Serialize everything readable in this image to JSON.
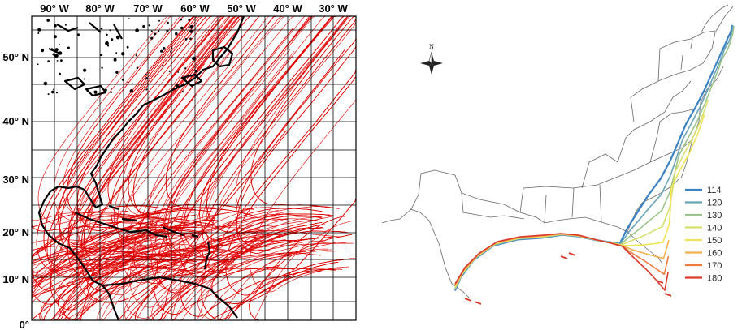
{
  "left_map": {
    "lon_labels": [
      "90° W",
      "80° W",
      "70° W",
      "60° W",
      "50° W",
      "40° W",
      "30° W"
    ],
    "lat_labels": [
      "50° N",
      "40° N",
      "30° N",
      "20° N",
      "10° N",
      "0°"
    ],
    "track_color": "#e00000",
    "coast_color": "#000000"
  },
  "right_map": {
    "compass_label": "N",
    "legend": [
      {
        "label": "114",
        "color": "#3b82c4"
      },
      {
        "label": "120",
        "color": "#6aa3b8"
      },
      {
        "label": "130",
        "color": "#9cc48a"
      },
      {
        "label": "140",
        "color": "#d6df6a"
      },
      {
        "label": "150",
        "color": "#f2e35a"
      },
      {
        "label": "160",
        "color": "#f4b04a"
      },
      {
        "label": "170",
        "color": "#ee7a3c"
      },
      {
        "label": "180",
        "color": "#d93a2c"
      }
    ]
  }
}
